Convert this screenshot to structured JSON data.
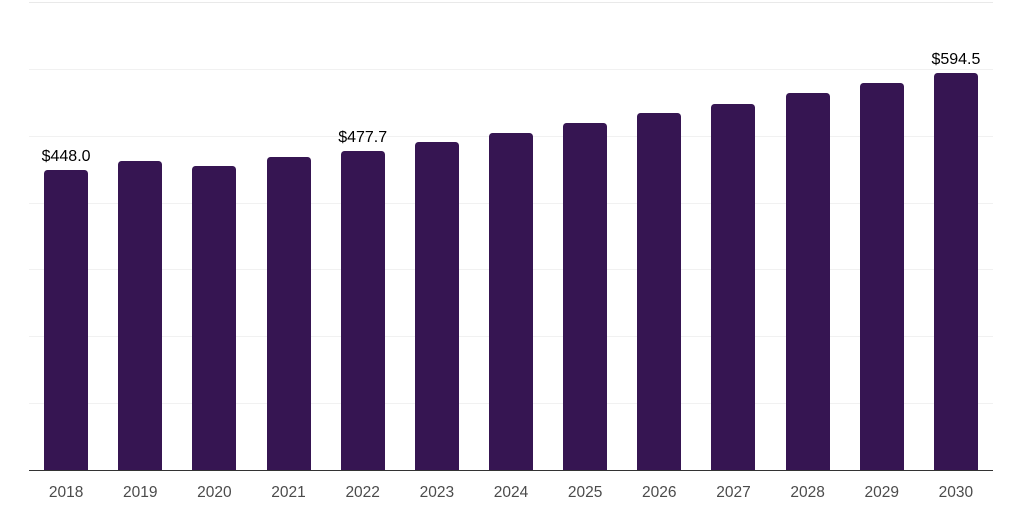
{
  "chart_data": {
    "type": "bar",
    "title": "",
    "xlabel": "",
    "ylabel": "",
    "categories": [
      "2018",
      "2019",
      "2020",
      "2021",
      "2022",
      "2023",
      "2024",
      "2025",
      "2026",
      "2027",
      "2028",
      "2029",
      "2030"
    ],
    "values": [
      448.0,
      462.0,
      455.0,
      467.5,
      477.7,
      491.0,
      504.7,
      518.8,
      533.3,
      548.2,
      563.5,
      579.2,
      594.5
    ],
    "annotations": [
      {
        "index": 0,
        "text": "$448.0"
      },
      {
        "index": 4,
        "text": "$477.7"
      },
      {
        "index": 12,
        "text": "$594.5"
      }
    ],
    "ylim": [
      0,
      700
    ],
    "gridline_step": 100,
    "grid": true,
    "legend": false,
    "y_axis_labels_visible": false,
    "colors": {
      "bar": "#361552",
      "axis_line": "#333333",
      "gridline": "#f1f1f1",
      "top_gridline": "#e9e9e9",
      "tick_label": "#4b4b4b",
      "value_label": "#000000",
      "background": "#ffffff"
    }
  }
}
